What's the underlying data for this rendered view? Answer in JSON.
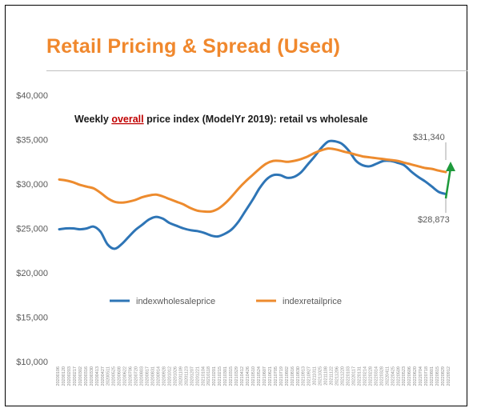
{
  "slide": {
    "title": "Retail Pricing & Spread (Used)"
  },
  "colors": {
    "title": "#f0882d",
    "wholesale": "#2e75b6",
    "retail": "#ed8b2e",
    "arrow": "#1e9a3c",
    "highlight": "#c00000"
  },
  "chart_data": {
    "type": "line",
    "title_parts": [
      "Weekly ",
      "overall",
      " price index (ModelYr 2019): retail vs wholesale"
    ],
    "xlabel": "",
    "ylabel": "",
    "ylim": [
      10000,
      40000
    ],
    "y_ticks": [
      10000,
      15000,
      20000,
      25000,
      30000,
      35000,
      40000
    ],
    "y_tick_labels": [
      "$10,000",
      "$15,000",
      "$20,000",
      "$25,000",
      "$30,000",
      "$35,000",
      "$40,000"
    ],
    "grid": false,
    "legend_position": "middle",
    "x_tick_labels": [
      "20200106",
      "20200120",
      "20200203",
      "20200217",
      "20200302",
      "20200316",
      "20200330",
      "20200413",
      "20200427",
      "20200511",
      "20200525",
      "20200608",
      "20200622",
      "20200706",
      "20200720",
      "20200803",
      "20200817",
      "20200831",
      "20200914",
      "20200928",
      "20201012",
      "20201026",
      "20201109",
      "20201123",
      "20201207",
      "20201221",
      "20210104",
      "20210118",
      "20210201",
      "20210215",
      "20210301",
      "20210315",
      "20210329",
      "20210412",
      "20210426",
      "20210510",
      "20210524",
      "20210607",
      "20210621",
      "20210705",
      "20210719",
      "20210802",
      "20210816",
      "20210830",
      "20210913",
      "20210927",
      "20211011",
      "20211025",
      "20211108",
      "20211122",
      "20211206",
      "20211220",
      "20220103",
      "20220117",
      "20220131",
      "20220214",
      "20220228",
      "20220314",
      "20220328",
      "20220411",
      "20220425",
      "20220509",
      "20220523",
      "20220606",
      "20220620",
      "20220704",
      "20220718",
      "20220801",
      "20220815",
      "20220829",
      "20220912"
    ],
    "series": [
      {
        "name": "indexwholesaleprice",
        "color": "#2e75b6",
        "values": [
          24900,
          25000,
          25000,
          24900,
          25000,
          25200,
          24600,
          23200,
          22700,
          23200,
          24000,
          24800,
          25400,
          26000,
          26300,
          26100,
          25600,
          25300,
          25000,
          24800,
          24700,
          24500,
          24200,
          24100,
          24400,
          24900,
          25800,
          27000,
          28200,
          29500,
          30500,
          31000,
          31000,
          30700,
          30800,
          31300,
          32200,
          33100,
          34100,
          34800,
          34800,
          34500,
          33700,
          32600,
          32100,
          32000,
          32300,
          32600,
          32600,
          32400,
          32100,
          31400,
          30800,
          30300,
          29700,
          29100,
          28873
        ],
        "x_frac_end": 1.0
      },
      {
        "name": "indexretailprice",
        "color": "#ed8b2e",
        "values": [
          30500,
          30400,
          30200,
          29900,
          29700,
          29500,
          29000,
          28400,
          28000,
          27900,
          28000,
          28200,
          28500,
          28700,
          28800,
          28600,
          28300,
          28000,
          27700,
          27300,
          27000,
          26900,
          26900,
          27200,
          27800,
          28600,
          29500,
          30300,
          31000,
          31700,
          32300,
          32600,
          32600,
          32500,
          32600,
          32800,
          33100,
          33500,
          33800,
          34000,
          33900,
          33700,
          33500,
          33300,
          33100,
          33000,
          32900,
          32800,
          32700,
          32600,
          32400,
          32200,
          32000,
          31800,
          31700,
          31500,
          31340
        ]
      }
    ],
    "annotations": {
      "retail_last": "$31,340",
      "wholesale_last": "$28,873"
    }
  }
}
